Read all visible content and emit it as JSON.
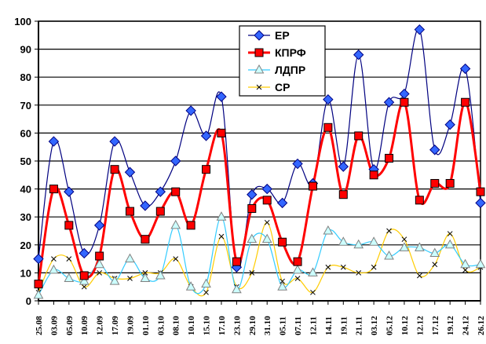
{
  "chart_data": {
    "type": "line",
    "title": "",
    "xlabel": "",
    "ylabel": "",
    "ylim": [
      0,
      100
    ],
    "yticks": [
      0,
      10,
      20,
      30,
      40,
      50,
      60,
      70,
      80,
      90,
      100
    ],
    "grid": true,
    "legend_position": "top-center",
    "categories": [
      "25.08",
      "03.09",
      "05.09",
      "10.09",
      "12.09",
      "17.09",
      "19.09",
      "01.10",
      "03.10",
      "08.10",
      "10.10",
      "15.10",
      "17.10",
      "23.10",
      "29.10",
      "31.10",
      "05.11",
      "07.11",
      "12.11",
      "14.11",
      "19.11",
      "21.11",
      "03.12",
      "05.12",
      "10.12",
      "12.12",
      "17.12",
      "19.12",
      "24.12",
      "26.12"
    ],
    "series": [
      {
        "name": "ЕР",
        "color": "#000080",
        "marker": "diamond",
        "marker_color": "#3366FF",
        "values": [
          15,
          57,
          39,
          17,
          27,
          57,
          46,
          34,
          39,
          50,
          68,
          59,
          73,
          12,
          38,
          40,
          35,
          49,
          42,
          72,
          48,
          88,
          47,
          71,
          74,
          97,
          54,
          63,
          83,
          35
        ]
      },
      {
        "name": "КПРФ",
        "color": "#FF0000",
        "marker": "square",
        "marker_color": "#FF0000",
        "values": [
          6,
          40,
          27,
          9,
          16,
          47,
          32,
          22,
          32,
          39,
          27,
          47,
          60,
          14,
          33,
          36,
          21,
          14,
          41,
          62,
          38,
          59,
          45,
          51,
          71,
          36,
          42,
          42,
          71,
          39
        ]
      },
      {
        "name": "ЛДПР",
        "color": "#33CCFF",
        "marker": "triangle",
        "marker_color": "#CCFFFF",
        "values": [
          2,
          11,
          8,
          7,
          13,
          7,
          15,
          8,
          9,
          27,
          5,
          6,
          30,
          4,
          22,
          22,
          5,
          11,
          10,
          25,
          21,
          20,
          21,
          16,
          19,
          19,
          17,
          20,
          13,
          13
        ]
      },
      {
        "name": "СР",
        "color": "#FFCC00",
        "marker": "x",
        "marker_color": "#000000",
        "values": [
          3,
          15,
          15,
          5,
          10,
          8,
          8,
          10,
          10,
          15,
          5,
          3,
          23,
          5,
          10,
          28,
          7,
          8,
          3,
          12,
          12,
          10,
          12,
          25,
          22,
          9,
          13,
          24,
          11,
          12
        ]
      }
    ]
  }
}
